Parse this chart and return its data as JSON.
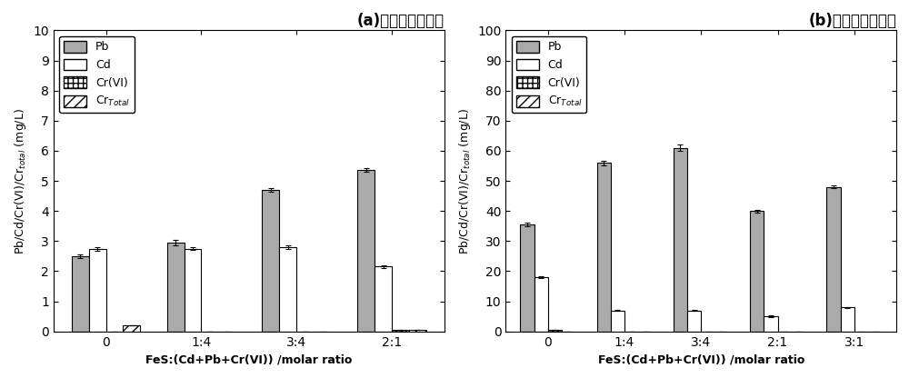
{
  "panel_a": {
    "title": "(a)中浓度污染土壤",
    "xlabel": "FeS:(Cd+Pb+Cr(VI)) /molar ratio",
    "ylim": [
      0,
      10
    ],
    "yticks": [
      0,
      1,
      2,
      3,
      4,
      5,
      6,
      7,
      8,
      9,
      10
    ],
    "groups": [
      "0",
      "1:4",
      "3:4",
      "2:1"
    ],
    "Pb": [
      2.5,
      2.95,
      4.7,
      5.35
    ],
    "Cd": [
      2.75,
      2.75,
      2.8,
      2.15
    ],
    "CrVI": [
      0.0,
      0.0,
      0.0,
      0.05
    ],
    "Crtotal": [
      0.2,
      0.0,
      0.0,
      0.05
    ],
    "Pb_err": [
      0.05,
      0.08,
      0.07,
      0.06
    ],
    "Cd_err": [
      0.06,
      0.05,
      0.05,
      0.05
    ],
    "CrVI_err": [
      0.0,
      0.0,
      0.0,
      0.01
    ],
    "Crtotal_err": [
      0.01,
      0.0,
      0.0,
      0.01
    ]
  },
  "panel_b": {
    "title": "(b)高浓度污染土壤",
    "xlabel": "FeS:(Cd+Pb+Cr(VI)) /molar ratio",
    "ylim": [
      0,
      100
    ],
    "yticks": [
      0,
      10,
      20,
      30,
      40,
      50,
      60,
      70,
      80,
      90,
      100
    ],
    "groups": [
      "0",
      "1:4",
      "3:4",
      "2:1",
      "3:1"
    ],
    "Pb": [
      35.5,
      56.0,
      61.0,
      40.0,
      48.0
    ],
    "Cd": [
      18.0,
      7.0,
      7.0,
      5.0,
      8.0
    ],
    "CrVI": [
      0.5,
      0.0,
      0.0,
      0.0,
      0.0
    ],
    "Crtotal": [
      0.0,
      0.0,
      0.0,
      0.0,
      0.0
    ],
    "Pb_err": [
      0.5,
      0.8,
      1.0,
      0.5,
      0.5
    ],
    "Cd_err": [
      0.3,
      0.2,
      0.2,
      0.2,
      0.2
    ],
    "CrVI_err": [
      0.05,
      0.0,
      0.0,
      0.0,
      0.0
    ],
    "Crtotal_err": [
      0.0,
      0.0,
      0.0,
      0.0,
      0.0
    ]
  },
  "bar_width": 0.18,
  "color_Pb": "#aaaaaa",
  "color_Cd": "#ffffff",
  "edgecolor": "#000000",
  "background": "#ffffff"
}
